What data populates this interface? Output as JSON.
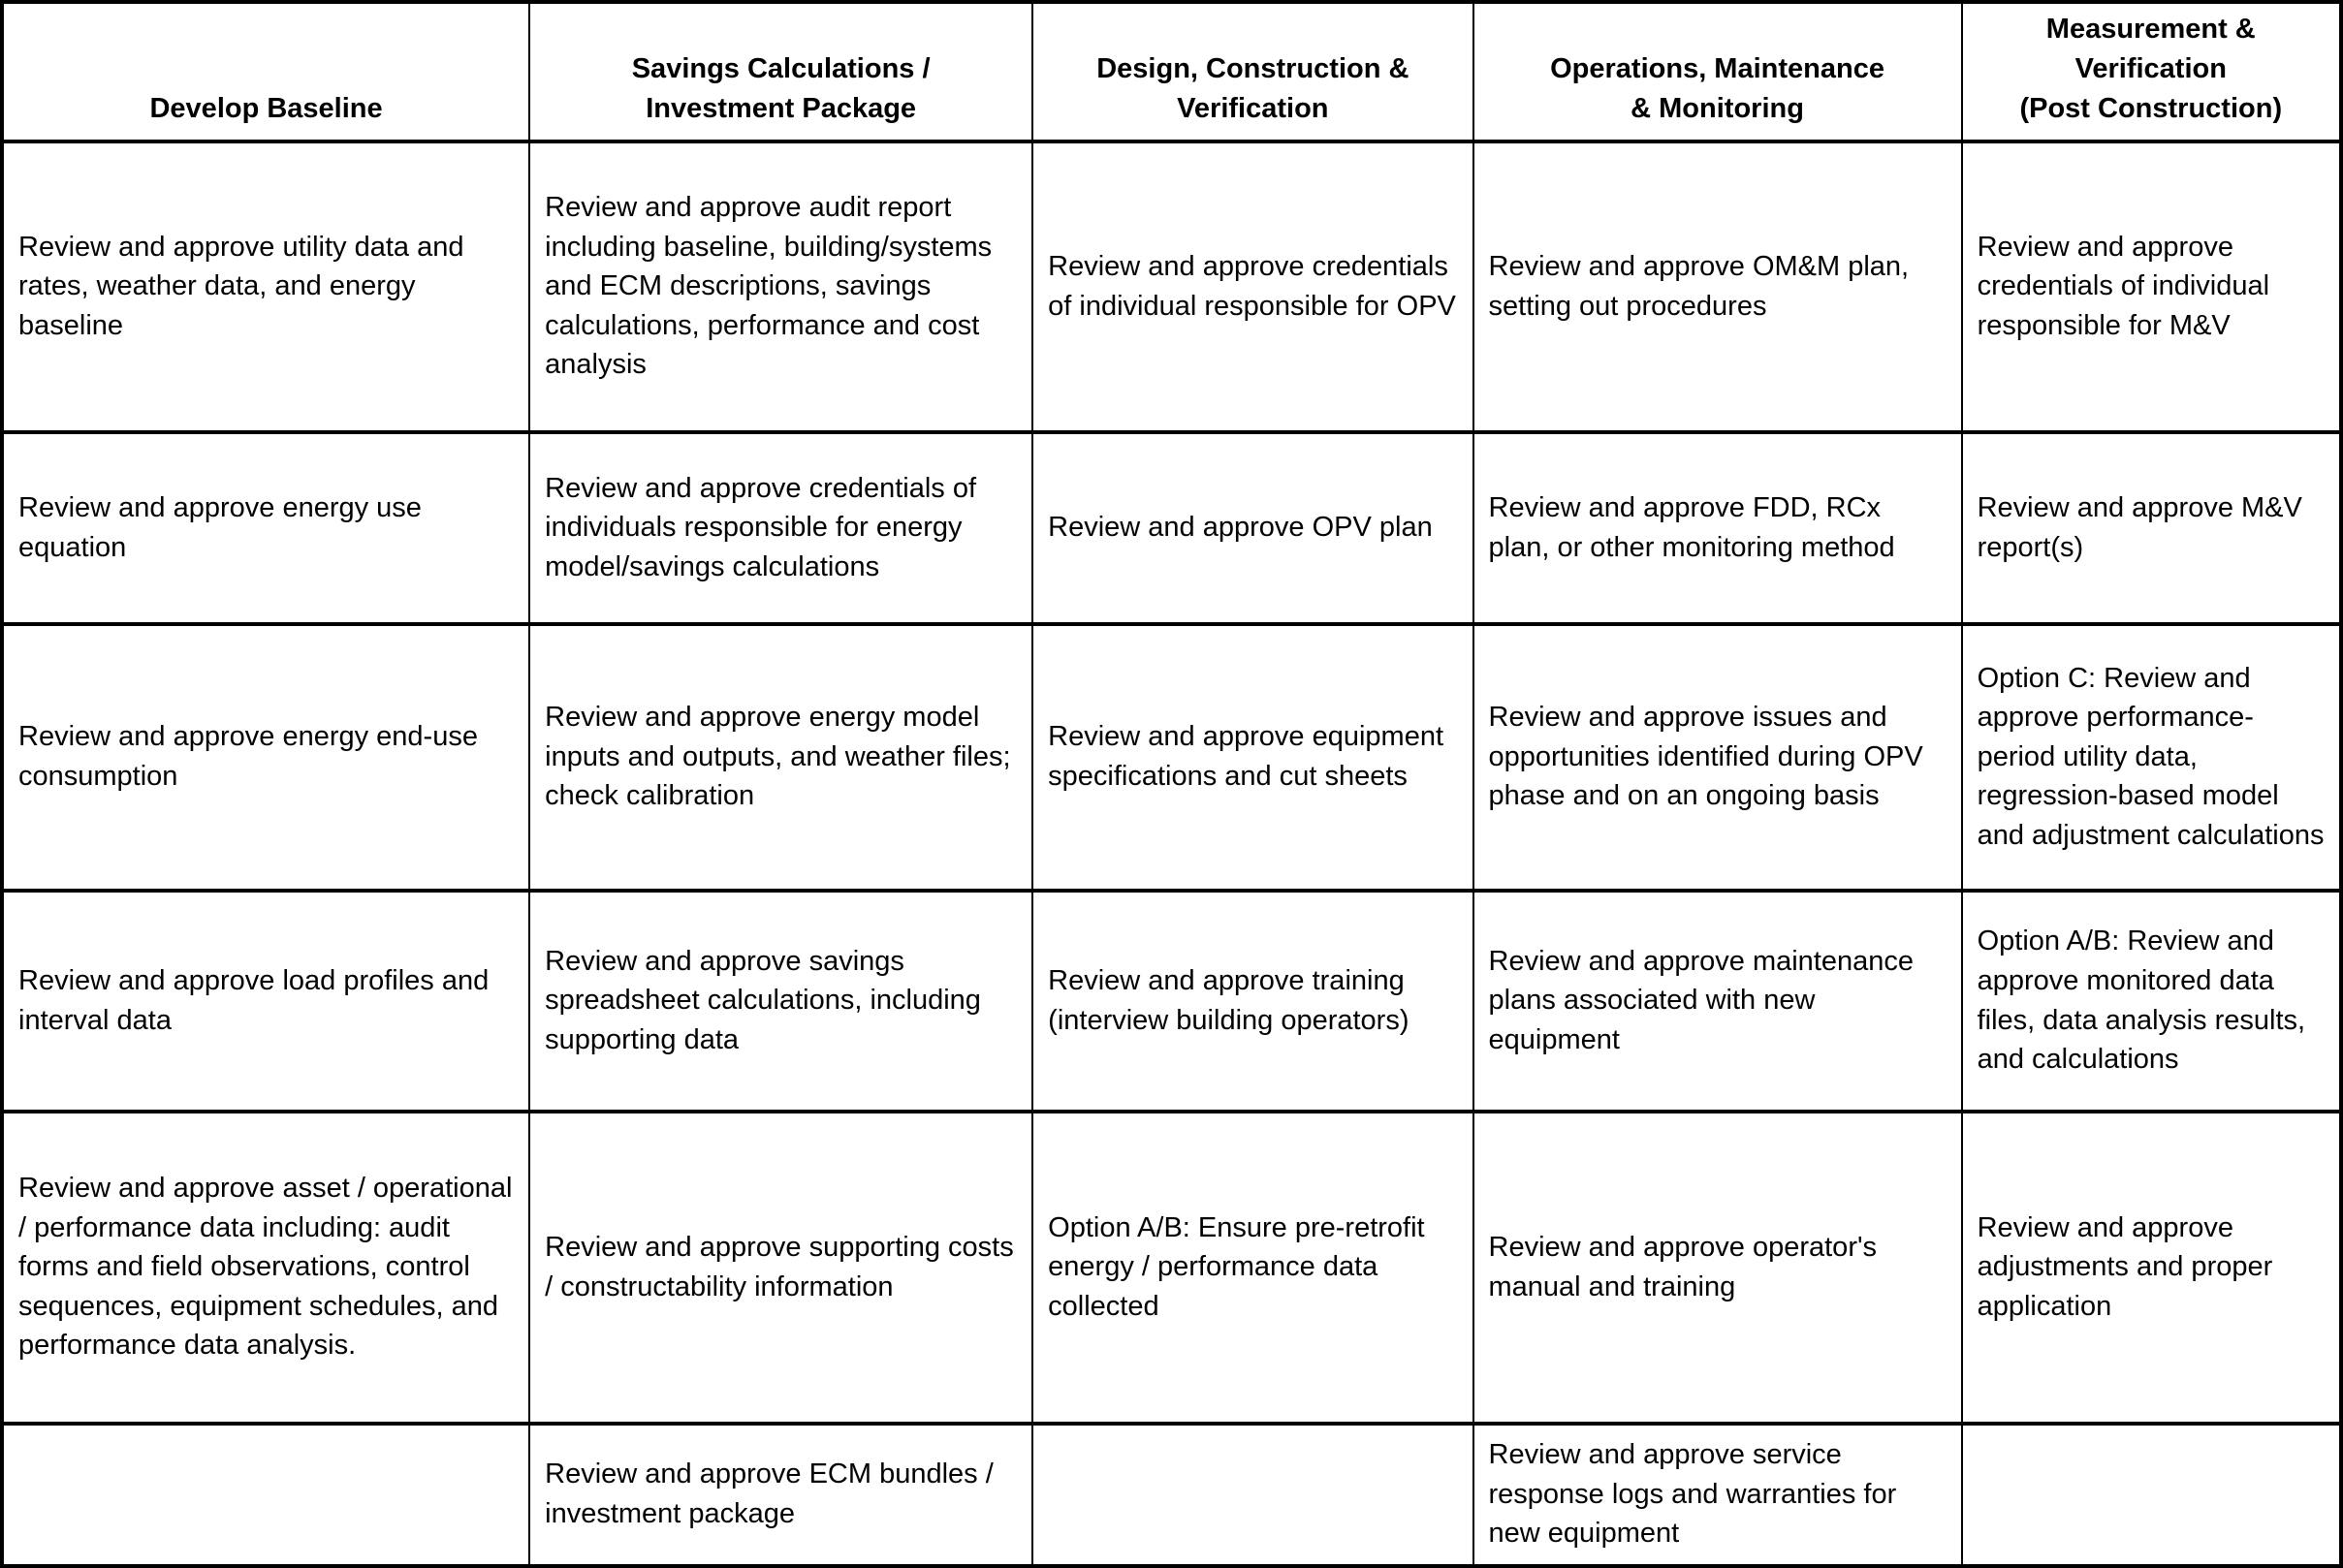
{
  "table": {
    "headers": [
      "Develop Baseline",
      "Savings Calculations /\nInvestment Package",
      "Design, Construction &\nVerification",
      "Operations, Maintenance\n& Monitoring",
      "Measurement &\nVerification\n(Post Construction)"
    ],
    "rows": [
      [
        "Review and approve utility data and rates, weather data, and energy baseline",
        "Review and approve audit report including baseline, building/systems and ECM descriptions, savings calculations, performance and cost analysis",
        "Review and approve credentials of individual responsible for OPV",
        "Review and approve OM&M plan, setting out procedures",
        "Review and approve credentials of individual responsible for M&V"
      ],
      [
        "Review and approve energy use equation",
        "Review and approve credentials of individuals responsible for energy model/savings calculations",
        "Review and approve OPV plan",
        "Review and approve FDD, RCx plan, or other monitoring method",
        "Review and approve M&V report(s)"
      ],
      [
        "Review and approve energy end-use consumption",
        "Review and approve energy model inputs and outputs, and weather files; check calibration",
        "Review and approve equipment specifications and cut sheets",
        "Review and approve issues and opportunities identified during OPV phase and on an ongoing basis",
        "Option C: Review and approve performance-period utility data, regression-based model and adjustment calculations"
      ],
      [
        "Review and approve load profiles and interval data",
        "Review and approve savings spreadsheet calculations, including supporting data",
        "Review and approve training (interview building operators)",
        "Review and approve maintenance plans associated with new equipment",
        "Option A/B: Review and approve monitored data files, data analysis results, and calculations"
      ],
      [
        "Review and approve asset / operational / performance data including: audit forms and field observations, control sequences, equipment schedules, and performance data analysis.",
        "Review and approve supporting costs / constructability information",
        "Option A/B: Ensure pre-retrofit energy / performance data collected",
        "Review and approve operator's manual and training",
        "Review and approve adjustments and proper application"
      ],
      [
        "",
        "Review and approve ECM bundles / investment package",
        "",
        "Review and approve service response logs and warranties for new equipment",
        ""
      ]
    ]
  }
}
